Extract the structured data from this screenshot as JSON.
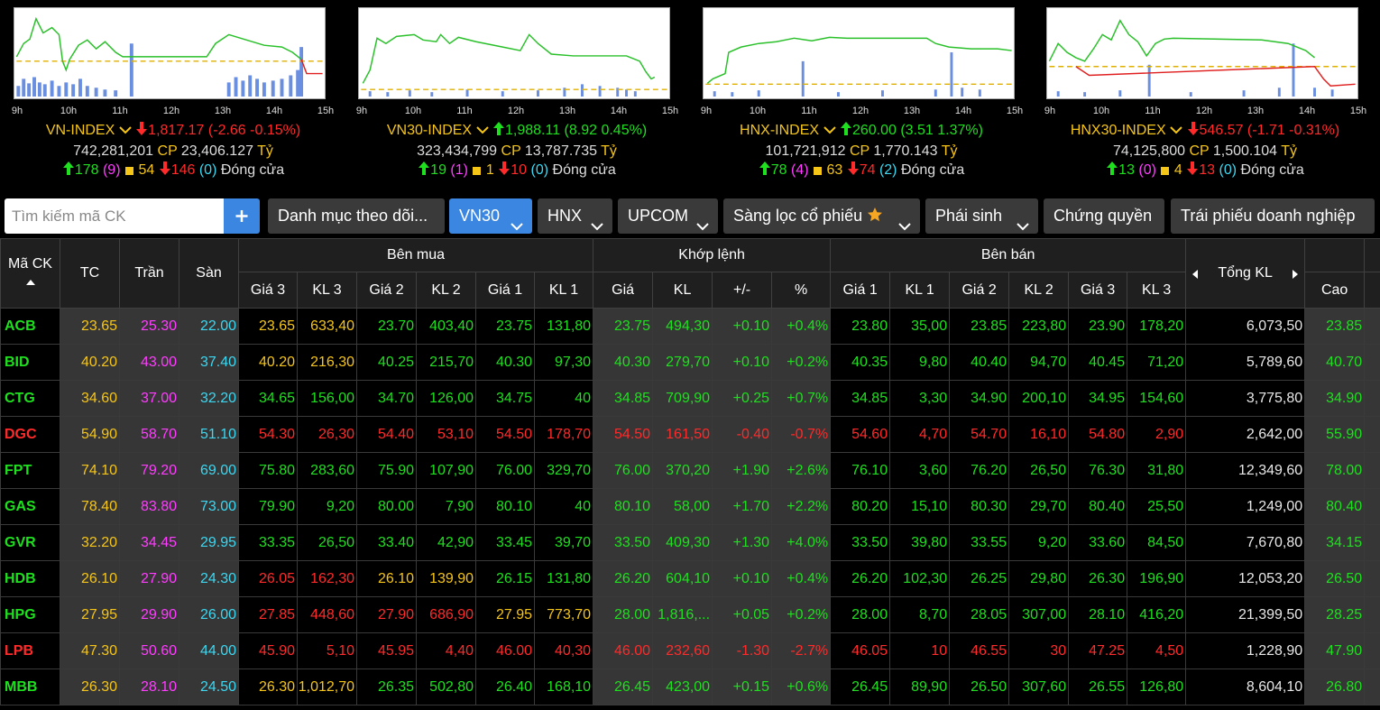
{
  "chart_hours": [
    "9h",
    "10h",
    "11h",
    "12h",
    "13h",
    "14h",
    "15h"
  ],
  "indices": [
    {
      "name": "VN-INDEX",
      "trend": "down",
      "value": "1,817.17",
      "change": "(-2.66 -0.15%)",
      "volume": "742,281,201",
      "volume_unit": "CP",
      "turnover": "23,406.127",
      "turnover_unit": "Tỷ",
      "advances": "178",
      "ceiling": "(9)",
      "unchanged": "54",
      "declines": "146",
      "floor": "(0)",
      "status": "Đóng cửa"
    },
    {
      "name": "VN30-INDEX",
      "trend": "up",
      "value": "1,988.11",
      "change": "(8.92 0.45%)",
      "volume": "323,434,799",
      "volume_unit": "CP",
      "turnover": "13,787.735",
      "turnover_unit": "Tỷ",
      "advances": "19",
      "ceiling": "(1)",
      "unchanged": "1",
      "declines": "10",
      "floor": "(0)",
      "status": "Đóng cửa"
    },
    {
      "name": "HNX-INDEX",
      "trend": "up",
      "value": "260.00",
      "change": "(3.51 1.37%)",
      "volume": "101,721,912",
      "volume_unit": "CP",
      "turnover": "1,770.143",
      "turnover_unit": "Tỷ",
      "advances": "78",
      "ceiling": "(4)",
      "unchanged": "63",
      "declines": "74",
      "floor": "(2)",
      "status": "Đóng cửa"
    },
    {
      "name": "HNX30-INDEX",
      "trend": "down",
      "value": "546.57",
      "change": "(-1.71 -0.31%)",
      "volume": "74,125,800",
      "volume_unit": "CP",
      "turnover": "1,500.104",
      "turnover_unit": "Tỷ",
      "advances": "13",
      "ceiling": "(0)",
      "unchanged": "4",
      "declines": "13",
      "floor": "(0)",
      "status": "Đóng cửa"
    }
  ],
  "toolbar": {
    "search_placeholder": "Tìm kiếm mã CK",
    "tabs": [
      {
        "label": "Danh mục theo dõi...",
        "dropdown": false,
        "active": false
      },
      {
        "label": "VN30",
        "dropdown": true,
        "active": true
      },
      {
        "label": "HNX",
        "dropdown": true,
        "active": false
      },
      {
        "label": "UPCOM",
        "dropdown": true,
        "active": false
      },
      {
        "label": "Sàng lọc cổ phiếu",
        "dropdown": true,
        "active": false,
        "star": true
      },
      {
        "label": "Phái sinh",
        "dropdown": true,
        "active": false
      },
      {
        "label": "Chứng quyền",
        "dropdown": false,
        "active": false
      },
      {
        "label": "Trái phiếu doanh nghiệp",
        "dropdown": false,
        "active": false
      }
    ]
  },
  "table": {
    "fixed_headers": [
      "Mã CK",
      "TC",
      "Trần",
      "Sàn"
    ],
    "groups": [
      {
        "title": "Bên mua",
        "columns": [
          "Giá 3",
          "KL 3",
          "Giá 2",
          "KL 2",
          "Giá 1",
          "KL 1"
        ]
      },
      {
        "title": "Khớp lệnh",
        "columns": [
          "Giá",
          "KL",
          "+/-",
          "%"
        ]
      },
      {
        "title": "Bên bán",
        "columns": [
          "Giá 1",
          "KL 1",
          "Giá 2",
          "KL 2",
          "Giá 3",
          "KL 3"
        ]
      }
    ],
    "total_header": "Tổng KL",
    "high_header": "Cao",
    "rows": [
      [
        "ACB",
        "23.65",
        "25.30",
        "22.00",
        "23.65",
        "633,40",
        "23.70",
        "403,40",
        "23.75",
        "131,80",
        "23.75",
        "494,30",
        "+0.10",
        "+0.4%",
        "23.80",
        "35,00",
        "23.85",
        "223,80",
        "23.90",
        "178,20",
        "6,073,50",
        "23.85"
      ],
      [
        "BID",
        "40.20",
        "43.00",
        "37.40",
        "40.20",
        "216,30",
        "40.25",
        "215,70",
        "40.30",
        "97,30",
        "40.30",
        "279,70",
        "+0.10",
        "+0.2%",
        "40.35",
        "9,80",
        "40.40",
        "94,70",
        "40.45",
        "71,20",
        "5,789,60",
        "40.70"
      ],
      [
        "CTG",
        "34.60",
        "37.00",
        "32.20",
        "34.65",
        "156,00",
        "34.70",
        "126,00",
        "34.75",
        "40",
        "34.85",
        "709,90",
        "+0.25",
        "+0.7%",
        "34.85",
        "3,30",
        "34.90",
        "200,10",
        "34.95",
        "154,60",
        "3,775,80",
        "34.90"
      ],
      [
        "DGC",
        "54.90",
        "58.70",
        "51.10",
        "54.30",
        "26,30",
        "54.40",
        "53,10",
        "54.50",
        "178,70",
        "54.50",
        "161,50",
        "-0.40",
        "-0.7%",
        "54.60",
        "4,70",
        "54.70",
        "16,10",
        "54.80",
        "2,90",
        "2,642,00",
        "55.90"
      ],
      [
        "FPT",
        "74.10",
        "79.20",
        "69.00",
        "75.80",
        "283,60",
        "75.90",
        "107,90",
        "76.00",
        "329,70",
        "76.00",
        "370,20",
        "+1.90",
        "+2.6%",
        "76.10",
        "3,60",
        "76.20",
        "26,50",
        "76.30",
        "31,80",
        "12,349,60",
        "78.00"
      ],
      [
        "GAS",
        "78.40",
        "83.80",
        "73.00",
        "79.90",
        "9,20",
        "80.00",
        "7,90",
        "80.10",
        "40",
        "80.10",
        "58,00",
        "+1.70",
        "+2.2%",
        "80.20",
        "15,10",
        "80.30",
        "29,70",
        "80.40",
        "25,50",
        "1,249,00",
        "80.40"
      ],
      [
        "GVR",
        "32.20",
        "34.45",
        "29.95",
        "33.35",
        "26,50",
        "33.40",
        "42,90",
        "33.45",
        "39,70",
        "33.50",
        "409,30",
        "+1.30",
        "+4.0%",
        "33.50",
        "39,80",
        "33.55",
        "9,20",
        "33.60",
        "84,50",
        "7,670,80",
        "34.15"
      ],
      [
        "HDB",
        "26.10",
        "27.90",
        "24.30",
        "26.05",
        "162,30",
        "26.10",
        "139,90",
        "26.15",
        "131,80",
        "26.20",
        "604,10",
        "+0.10",
        "+0.4%",
        "26.20",
        "102,30",
        "26.25",
        "29,80",
        "26.30",
        "196,90",
        "12,053,20",
        "26.50"
      ],
      [
        "HPG",
        "27.95",
        "29.90",
        "26.00",
        "27.85",
        "448,60",
        "27.90",
        "686,90",
        "27.95",
        "773,70",
        "28.00",
        "1,816,...",
        "+0.05",
        "+0.2%",
        "28.00",
        "8,70",
        "28.05",
        "307,00",
        "28.10",
        "416,20",
        "21,399,50",
        "28.25"
      ],
      [
        "LPB",
        "47.30",
        "50.60",
        "44.00",
        "45.90",
        "5,10",
        "45.95",
        "4,40",
        "46.00",
        "40,30",
        "46.00",
        "232,60",
        "-1.30",
        "-2.7%",
        "46.05",
        "10",
        "46.55",
        "30",
        "47.25",
        "4,50",
        "1,228,90",
        "47.90"
      ],
      [
        "MBB",
        "26.30",
        "28.10",
        "24.50",
        "26.30",
        "1,012,70",
        "26.35",
        "502,80",
        "26.40",
        "168,10",
        "26.45",
        "423,00",
        "+0.15",
        "+0.6%",
        "26.45",
        "89,90",
        "26.50",
        "307,60",
        "26.55",
        "126,80",
        "8,604,10",
        "26.80"
      ]
    ]
  }
}
